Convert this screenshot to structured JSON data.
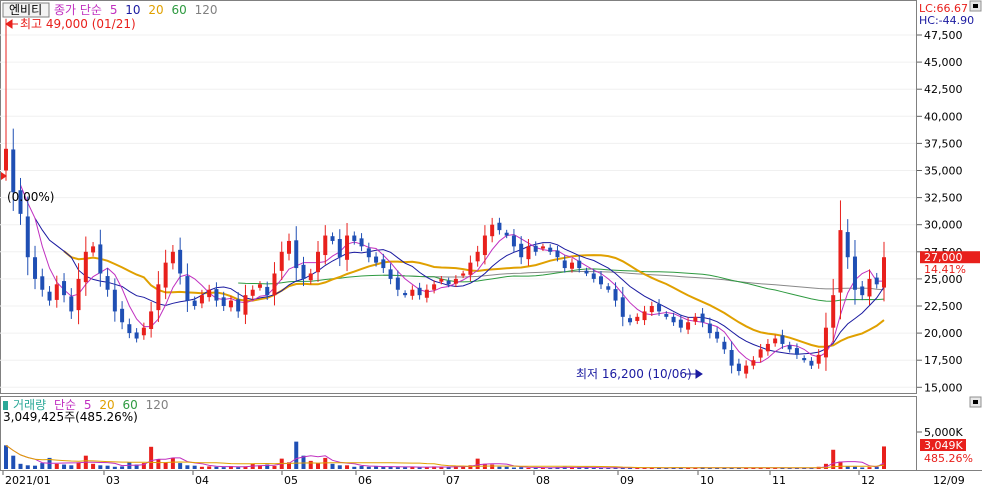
{
  "legend": {
    "stock_name": "엔비티",
    "ma_label": "종가 단순",
    "ma_periods": [
      "5",
      "10",
      "20",
      "60",
      "120"
    ],
    "volume_label": "거래량",
    "volume_ma_label": "단순",
    "volume_ma_periods": [
      "5",
      "20",
      "60",
      "120"
    ]
  },
  "annotations": {
    "high": "최고 49,000 (01/21)",
    "low": "최저 16,200 (10/06)",
    "ref_pct": "(0.00%)",
    "volume_info": "3,049,425주(485.26%)"
  },
  "price_axis": {
    "lc": "LC:66.67",
    "hc": "HC:-44.90",
    "current_price": "27,000",
    "current_pct": "14.41%",
    "tick_labels": [
      "47,500",
      "45,000",
      "42,500",
      "40,000",
      "37,500",
      "35,000",
      "32,500",
      "30,000",
      "27,500",
      "25,000",
      "22,500",
      "20,000",
      "17,500",
      "15,000"
    ]
  },
  "volume_axis": {
    "tick_label": "5,000K",
    "current_volume": "3,049K",
    "current_pct": "485.26%"
  },
  "date_labels": [
    "2021/01",
    "03",
    "04",
    "05",
    "06",
    "07",
    "08",
    "09",
    "10",
    "11",
    "12",
    "12/09"
  ],
  "colors": {
    "up": "#e8201c",
    "down": "#1f4fb4",
    "ma5": "#c030c0",
    "ma10": "#1a1aa0",
    "ma20": "#e0a000",
    "ma60": "#2e9a40",
    "ma120": "#888888",
    "volume": "#2aa898"
  },
  "chart_data": {
    "type": "candlestick",
    "price_range": [
      14500,
      49000
    ],
    "tick_values": [
      47500,
      45000,
      42500,
      40000,
      37500,
      35000,
      32500,
      30000,
      27500,
      25000,
      22500,
      20000,
      17500,
      15000
    ],
    "high": {
      "value": 49000,
      "date": "01/21"
    },
    "low": {
      "value": 16200,
      "date": "10/06"
    },
    "last_close": 27000,
    "closes": [
      37000,
      33000,
      31000,
      27000,
      25000,
      24000,
      23000,
      24500,
      23500,
      22000,
      25000,
      27500,
      28000,
      25500,
      24000,
      22000,
      21000,
      20000,
      19500,
      20500,
      22000,
      24500,
      26500,
      27500,
      25500,
      23000,
      22500,
      23500,
      24000,
      23000,
      22500,
      23000,
      22000,
      23500,
      24000,
      24500,
      23500,
      25500,
      27500,
      28500,
      26000,
      25000,
      25500,
      27500,
      29000,
      28500,
      27000,
      29000,
      28500,
      28000,
      27000,
      26500,
      26000,
      25000,
      24000,
      23500,
      24000,
      23500,
      24000,
      24500,
      25000,
      24500,
      25000,
      25500,
      26500,
      27500,
      29000,
      30000,
      29500,
      29000,
      28000,
      27000,
      28000,
      27500,
      28000,
      27500,
      27000,
      26000,
      26500,
      26000,
      25500,
      25000,
      24500,
      24000,
      23000,
      21500,
      21000,
      21500,
      22000,
      22500,
      22000,
      21500,
      21000,
      20500,
      21000,
      21500,
      21000,
      20000,
      19500,
      18500,
      17000,
      16500,
      17000,
      17500,
      18500,
      19000,
      19500,
      19000,
      18500,
      18000,
      17500,
      17000,
      18000,
      20500,
      23500,
      29500,
      27000,
      24000,
      23500,
      25000,
      24500,
      27000
    ],
    "volumes": [
      3200,
      1800,
      700,
      500,
      450,
      800,
      1500,
      700,
      600,
      500,
      900,
      1800,
      700,
      500,
      450,
      300,
      350,
      900,
      600,
      800,
      3000,
      1300,
      900,
      1500,
      800,
      500,
      450,
      300,
      350,
      300,
      250,
      400,
      250,
      350,
      700,
      500,
      600,
      400,
      1400,
      900,
      3700,
      1800,
      1100,
      800,
      1500,
      700,
      500,
      500,
      300,
      400,
      300,
      350,
      300,
      300,
      250,
      250,
      300,
      200,
      250,
      350,
      250,
      300,
      400,
      300,
      500,
      1400,
      700,
      600,
      300,
      300,
      200,
      250,
      150,
      150,
      200,
      150,
      250,
      300,
      200,
      200,
      200,
      150,
      150,
      150,
      250,
      150,
      200,
      150,
      150,
      150,
      150,
      150,
      200,
      150,
      150,
      150,
      250,
      150,
      150,
      200,
      150,
      150,
      150,
      200,
      150,
      150,
      150,
      150,
      150,
      150,
      150,
      150,
      300,
      700,
      2600,
      1000,
      400,
      300,
      200,
      250,
      300,
      3049
    ]
  }
}
